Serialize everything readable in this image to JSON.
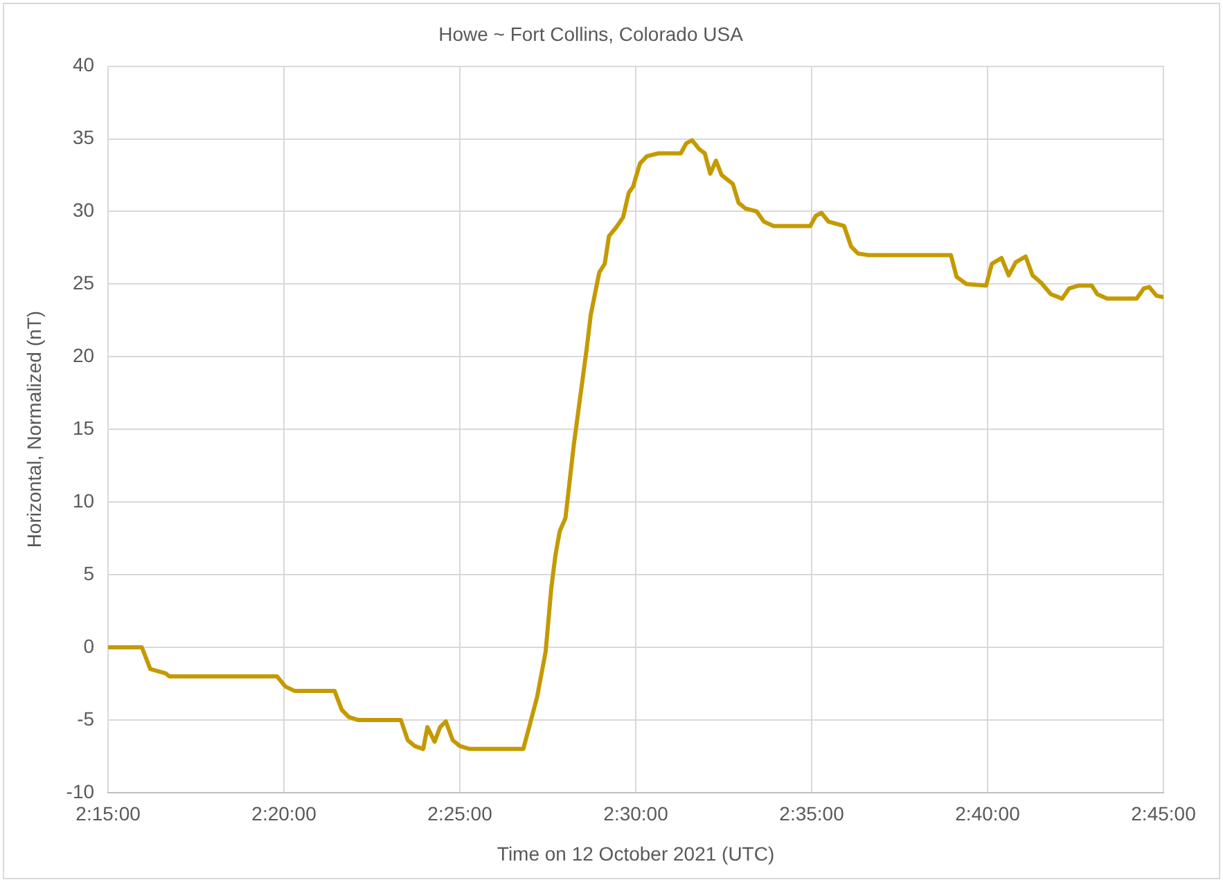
{
  "chart_data": {
    "type": "line",
    "title": "Howe ~ Fort Collins, Colorado USA",
    "xlabel": "Time on 12 October 2021 (UTC)",
    "ylabel": "Horizontal, Normalized (nT)",
    "x": [
      2.25,
      2.266,
      2.27,
      2.2773,
      2.279,
      2.33,
      2.334,
      2.3383,
      2.3573,
      2.3607,
      2.364,
      2.3683,
      2.3887,
      2.392,
      2.3953,
      2.3993,
      2.4013,
      2.4047,
      2.4073,
      2.41,
      2.4133,
      2.4167,
      2.4213,
      2.4467,
      2.4493,
      2.4533,
      2.4573,
      2.46,
      2.462,
      2.464,
      2.4667,
      2.4707,
      2.4767,
      2.4787,
      2.4827,
      2.4853,
      2.4873,
      2.4907,
      2.494,
      2.4967,
      2.4987,
      2.502,
      2.5053,
      2.5107,
      2.5213,
      2.524,
      2.5267,
      2.53,
      2.5327,
      2.5353,
      2.538,
      2.5407,
      2.546,
      2.5487,
      2.552,
      2.5573,
      2.5607,
      2.5653,
      2.5827,
      2.5853,
      2.588,
      2.5913,
      2.5987,
      2.602,
      2.6053,
      2.61,
      2.6493,
      2.652,
      2.6567,
      2.666,
      2.6687,
      2.6733,
      2.6767,
      2.68,
      2.6847,
      2.688,
      2.692,
      2.6967,
      2.702,
      2.7053,
      2.71,
      2.716,
      2.7187,
      2.7233,
      2.7373,
      2.7407,
      2.7433,
      2.7467,
      2.75
    ],
    "series": [
      {
        "color": "#c49a00",
        "values": [
          0,
          0,
          -1.5,
          -1.8,
          -2,
          -2,
          -2.7,
          -3,
          -3,
          -4.3,
          -4.8,
          -5,
          -5,
          -6.4,
          -6.8,
          -7,
          -5.5,
          -6.5,
          -5.5,
          -5.1,
          -6.4,
          -6.8,
          -7,
          -7,
          -5.6,
          -3.4,
          -0.3,
          4.1,
          6.4,
          8,
          8.9,
          14,
          20.5,
          22.9,
          25.8,
          26.4,
          28.3,
          28.9,
          29.6,
          31.3,
          31.7,
          33.3,
          33.8,
          34,
          34,
          34.7,
          34.9,
          34.3,
          34,
          32.6,
          33.5,
          32.5,
          31.9,
          30.6,
          30.2,
          30,
          29.3,
          29,
          29,
          29.7,
          29.9,
          29.3,
          29,
          27.6,
          27.1,
          27,
          27,
          25.5,
          25,
          24.9,
          26.4,
          26.8,
          25.6,
          26.5,
          26.9,
          25.6,
          25.1,
          24.3,
          24,
          24.7,
          24.9,
          24.9,
          24.3,
          24,
          24,
          24.7,
          24.8,
          24.2,
          24.1
        ]
      }
    ],
    "xlim": [
      2.25,
      2.75
    ],
    "xticks": [
      {
        "value": 2.25,
        "label": "2:15:00"
      },
      {
        "value": 2.333333,
        "label": "2:20:00"
      },
      {
        "value": 2.416667,
        "label": "2:25:00"
      },
      {
        "value": 2.5,
        "label": "2:30:00"
      },
      {
        "value": 2.583333,
        "label": "2:35:00"
      },
      {
        "value": 2.666667,
        "label": "2:40:00"
      },
      {
        "value": 2.75,
        "label": "2:45:00"
      }
    ],
    "ylim": [
      -10,
      40
    ],
    "yticks": [
      -10,
      -5,
      0,
      5,
      10,
      15,
      20,
      25,
      30,
      35,
      40
    ],
    "grid": true,
    "legend": false,
    "marker": "none",
    "line_style": "solid"
  }
}
